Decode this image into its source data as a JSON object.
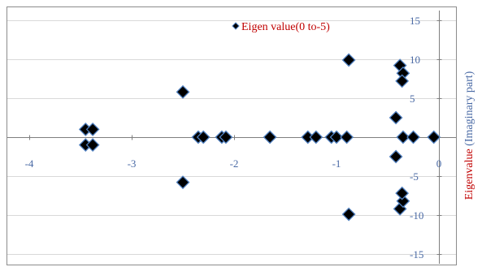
{
  "chart_data": {
    "type": "scatter",
    "legend": "top-center",
    "series": [
      {
        "name": "Eigen value(0 to-5)",
        "color": "#000000",
        "edge_color": "#4f7fbf",
        "marker": "diamond",
        "points": [
          [
            -3.45,
            1.0
          ],
          [
            -3.38,
            1.0
          ],
          [
            -3.45,
            -1.0
          ],
          [
            -3.38,
            -1.0
          ],
          [
            -2.5,
            5.8
          ],
          [
            -2.5,
            -5.8
          ],
          [
            -2.35,
            0
          ],
          [
            -2.3,
            0
          ],
          [
            -2.12,
            0
          ],
          [
            -2.08,
            0
          ],
          [
            -1.65,
            0
          ],
          [
            -1.28,
            0
          ],
          [
            -1.2,
            0
          ],
          [
            -1.05,
            0
          ],
          [
            -1.0,
            0
          ],
          [
            -0.9,
            0
          ],
          [
            -0.88,
            9.9
          ],
          [
            -0.88,
            -9.9
          ],
          [
            -0.42,
            2.5
          ],
          [
            -0.42,
            -2.5
          ],
          [
            -0.38,
            9.2
          ],
          [
            -0.35,
            8.2
          ],
          [
            -0.36,
            7.2
          ],
          [
            -0.38,
            -9.2
          ],
          [
            -0.35,
            -8.2
          ],
          [
            -0.36,
            -7.2
          ],
          [
            -0.35,
            0
          ],
          [
            -0.25,
            0
          ],
          [
            -0.05,
            0
          ]
        ]
      }
    ],
    "x_ticks": [
      "-4",
      "-3",
      "-2",
      "-1",
      "0"
    ],
    "x_tick_values": [
      -4,
      -3,
      -2,
      -1,
      0
    ],
    "y_ticks": [
      "15",
      "10",
      "5",
      "0",
      "-5",
      "-10",
      "-15"
    ],
    "y_tick_values": [
      15,
      10,
      5,
      0,
      -5,
      -10,
      -15
    ],
    "xlim": [
      -4,
      0
    ],
    "ylim": [
      -15,
      15
    ],
    "ylabel_part1": "Eigenvalue",
    "ylabel_part2": " (Imaginary part)",
    "ylabel_color1": "#c00000",
    "ylabel_color2": "#4a6aa5",
    "grid": true
  }
}
